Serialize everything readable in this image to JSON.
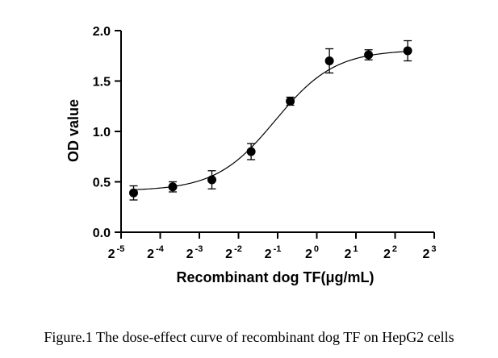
{
  "chart_data": {
    "type": "scatter",
    "xlabel": "Recombinant dog TF(μg/mL)",
    "ylabel": "OD value",
    "x_scale": "log2",
    "xlim": [
      0.03125,
      8
    ],
    "ylim": [
      0,
      2.0
    ],
    "x_ticks": [
      {
        "base": "2",
        "exp": "-5"
      },
      {
        "base": "2",
        "exp": "-4"
      },
      {
        "base": "2",
        "exp": "-3"
      },
      {
        "base": "2",
        "exp": "-2"
      },
      {
        "base": "2",
        "exp": "-1"
      },
      {
        "base": "2",
        "exp": "0"
      },
      {
        "base": "2",
        "exp": "1"
      },
      {
        "base": "2",
        "exp": "2"
      },
      {
        "base": "2",
        "exp": "3"
      }
    ],
    "y_ticks": [
      "0.0",
      "0.5",
      "1.0",
      "1.5",
      "2.0"
    ],
    "points": [
      {
        "x": 0.039,
        "y": 0.39,
        "err": 0.07
      },
      {
        "x": 0.078,
        "y": 0.45,
        "err": 0.05
      },
      {
        "x": 0.156,
        "y": 0.52,
        "err": 0.09
      },
      {
        "x": 0.3125,
        "y": 0.8,
        "err": 0.08
      },
      {
        "x": 0.625,
        "y": 1.3,
        "err": 0.04
      },
      {
        "x": 1.25,
        "y": 1.7,
        "err": 0.12
      },
      {
        "x": 2.5,
        "y": 1.76,
        "err": 0.05
      },
      {
        "x": 5.0,
        "y": 1.8,
        "err": 0.1
      }
    ],
    "fit": {
      "type": "4PL",
      "bottom": 0.41,
      "top": 1.81,
      "ec50": 0.48,
      "hill": 1.9
    },
    "grid": false,
    "legend": "none"
  },
  "caption": "Figure.1 The dose-effect curve of recombinant dog TF on HepG2 cells"
}
